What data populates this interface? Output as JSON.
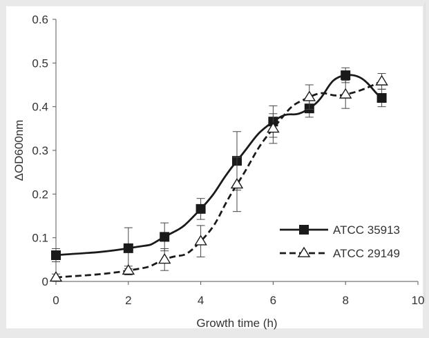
{
  "chart_data": {
    "type": "line",
    "title": "",
    "xlabel": "Growth time (h)",
    "ylabel": "ΔOD600nm",
    "xlim": [
      0,
      10
    ],
    "ylim": [
      0,
      0.6
    ],
    "xticks": [
      "0",
      "2",
      "4",
      "6",
      "8",
      "10"
    ],
    "yticks": [
      "0",
      "0.1",
      "0.2",
      "0.3",
      "0.4",
      "0.5",
      "0.6"
    ],
    "grid": false,
    "legend_position": "lower-right",
    "series": [
      {
        "name": "ATCC 35913",
        "marker": "filled-square",
        "line_style": "solid",
        "color": "#1a1a1a",
        "x": [
          0,
          2,
          3,
          4,
          5,
          6,
          7,
          8,
          9
        ],
        "y": [
          0.06,
          0.076,
          0.102,
          0.166,
          0.276,
          0.366,
          0.396,
          0.472,
          0.42
        ],
        "error": [
          0.015,
          0.047,
          0.032,
          0.024,
          0.067,
          0.036,
          0.02,
          0.017,
          0.02
        ]
      },
      {
        "name": "ATCC 29149",
        "marker": "open-triangle",
        "line_style": "dashed",
        "color": "#1a1a1a",
        "x": [
          0,
          2,
          3,
          4,
          5,
          6,
          7,
          8,
          9
        ],
        "y": [
          0.009,
          0.025,
          0.05,
          0.092,
          0.222,
          0.35,
          0.422,
          0.428,
          0.458
        ],
        "error": [
          0.008,
          0.01,
          0.025,
          0.036,
          0.062,
          0.034,
          0.028,
          0.032,
          0.018
        ]
      }
    ]
  }
}
